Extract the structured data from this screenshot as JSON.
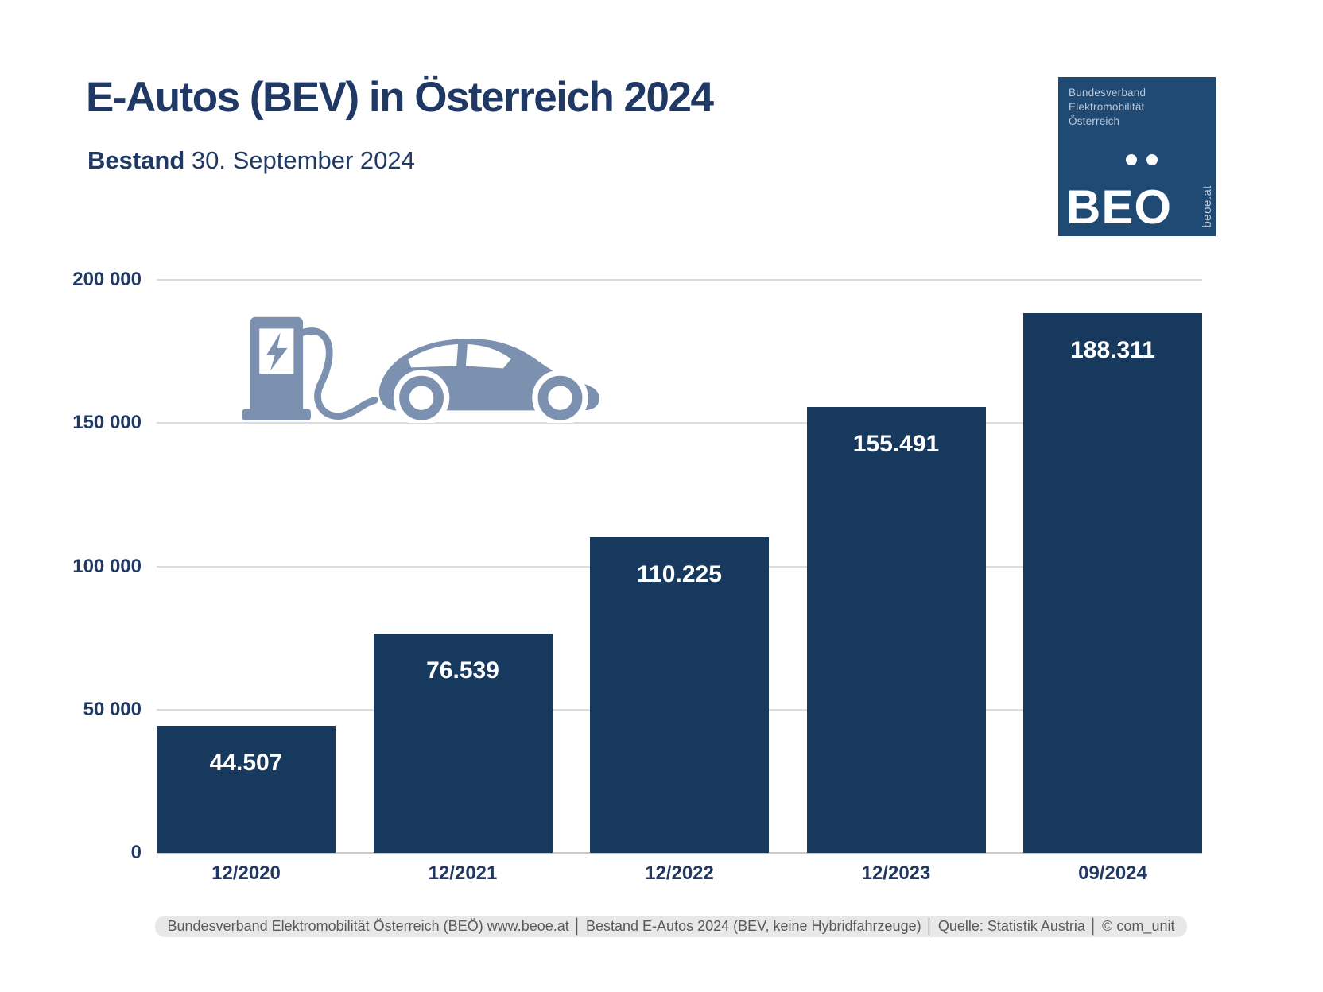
{
  "header": {
    "title": "E-Autos (BEV) in Österreich 2024",
    "subtitle_bold": "Bestand",
    "subtitle_rest": " 30. September 2024"
  },
  "logo": {
    "org_line1": "Bundesverband",
    "org_line2": "Elektromobilität",
    "org_line3": "Österreich",
    "wordmark": "BEO",
    "website": "beoe.at",
    "bg_color": "#1E4A74"
  },
  "chart_data": {
    "type": "bar",
    "title": "Bestand E-Autos (BEV) in Österreich 2024",
    "categories": [
      "12/2020",
      "12/2021",
      "12/2022",
      "12/2023",
      "09/2024"
    ],
    "values": [
      44507,
      76539,
      110225,
      155491,
      188311
    ],
    "value_labels": [
      "44.507",
      "76.539",
      "110.225",
      "155.491",
      "188.311"
    ],
    "xlabel": "",
    "ylabel": "",
    "ylim": [
      0,
      200000
    ],
    "yticks": [
      0,
      50000,
      100000,
      150000,
      200000
    ],
    "ytick_labels": [
      "0",
      "50 000",
      "100 000",
      "150 000",
      "200 000"
    ],
    "grid": true,
    "legend": "none",
    "bar_color": "#17395E",
    "bar_value_label_color": "#FFFFFF",
    "axis_label_color": "#1F3864"
  },
  "icon": {
    "name": "ev-charging-car-icon",
    "color": "#7C90B0"
  },
  "footer": {
    "text": "Bundesverband Elektromobilität Österreich (BEÖ) www.beoe.at │ Bestand E-Autos 2024 (BEV, keine Hybridfahrzeuge) │ Quelle: Statistik Austria │ © com_unit"
  },
  "colors": {
    "title": "#1F3864",
    "gridline": "#DCDCDC",
    "footer_bg": "#E9E8E8",
    "footer_text": "#595959"
  }
}
